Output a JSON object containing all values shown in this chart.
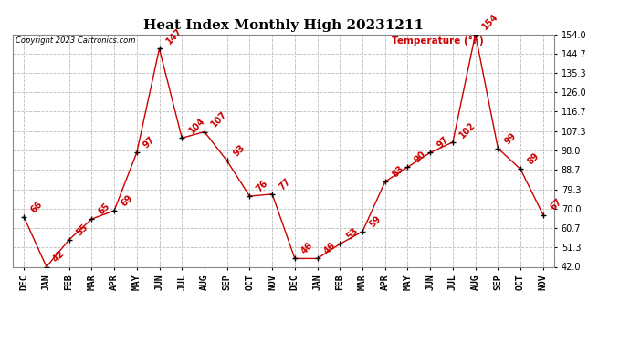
{
  "title": "Heat Index Monthly High 20231211",
  "copyright": "Copyright 2023 Cartronics.com",
  "legend_label": "Temperature (°F)",
  "x_labels": [
    "DEC",
    "JAN",
    "FEB",
    "MAR",
    "APR",
    "MAY",
    "JUN",
    "JUL",
    "AUG",
    "SEP",
    "OCT",
    "NOV",
    "DEC",
    "JAN",
    "FEB",
    "MAR",
    "APR",
    "MAY",
    "JUN",
    "JUL",
    "AUG",
    "SEP",
    "OCT",
    "NOV"
  ],
  "y_values": [
    66,
    42,
    55,
    65,
    69,
    97,
    147,
    104,
    107,
    93,
    76,
    77,
    46,
    46,
    53,
    59,
    83,
    90,
    97,
    102,
    154,
    99,
    89,
    67
  ],
  "point_labels": [
    "66",
    "42",
    "55",
    "65",
    "69",
    "97",
    "147",
    "104",
    "107",
    "93",
    "76",
    "77",
    "46",
    "46",
    "53",
    "59",
    "83",
    "90",
    "97",
    "102",
    "154",
    "99",
    "89",
    "67"
  ],
  "y_min": 42.0,
  "y_max": 154.0,
  "y_ticks": [
    42.0,
    51.3,
    60.7,
    70.0,
    79.3,
    88.7,
    98.0,
    107.3,
    116.7,
    126.0,
    135.3,
    144.7,
    154.0
  ],
  "line_color": "#cc0000",
  "marker_color": "#000000",
  "grid_color": "#bbbbbb",
  "bg_color": "#ffffff",
  "title_fontsize": 11,
  "label_fontsize": 7,
  "tick_fontsize": 7,
  "annotation_fontsize": 7
}
